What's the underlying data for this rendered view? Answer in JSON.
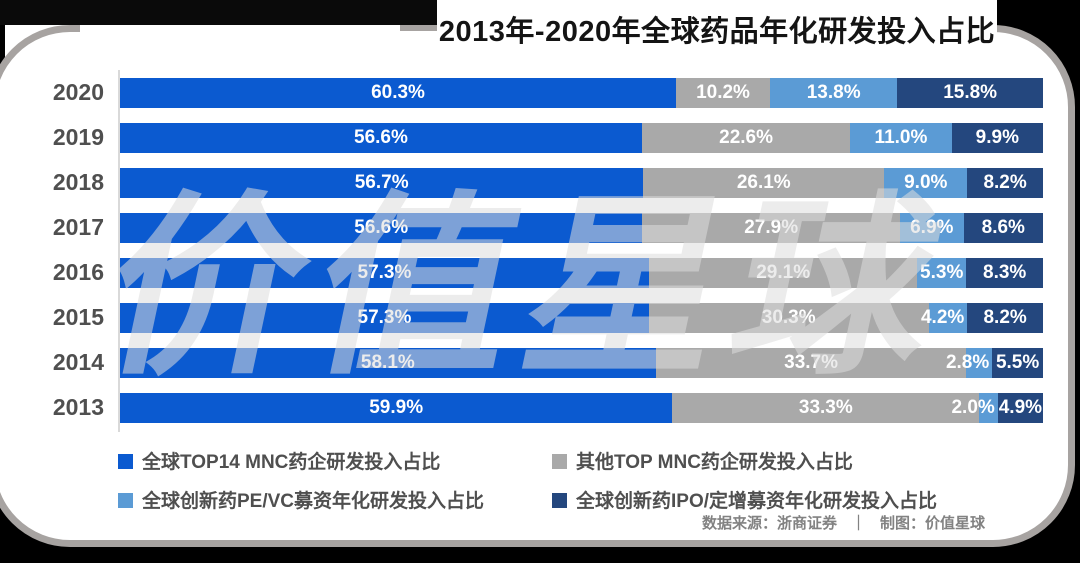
{
  "title": "2013年-2020年全球药品年化研发投入占比",
  "watermark": "价值星球",
  "colors": {
    "series_blue": "#0B5AD0",
    "series_gray": "#A9A9A9",
    "series_light_blue": "#5B9BD5",
    "series_dark_blue": "#24477E",
    "card_border": "#A7A3A1",
    "background": "#000000",
    "axis_line": "#D9D9D9",
    "year_text": "#4F4F4F",
    "footer_text": "#828282"
  },
  "chart_data": {
    "type": "bar",
    "stacked": true,
    "orientation": "horizontal",
    "title": "2013年-2020年全球药品年化研发投入占比",
    "value_suffix": "%",
    "xlim": [
      0,
      100
    ],
    "grid": false,
    "legend_position": "bottom",
    "categories": [
      "2020",
      "2019",
      "2018",
      "2017",
      "2016",
      "2015",
      "2014",
      "2013"
    ],
    "series": [
      {
        "name": "全球TOP14 MNC药企研发投入占比",
        "color": "#0B5AD0",
        "values": [
          60.3,
          56.6,
          56.7,
          56.6,
          57.3,
          57.3,
          58.1,
          59.9
        ]
      },
      {
        "name": "其他TOP MNC药企研发投入占比",
        "color": "#A9A9A9",
        "values": [
          10.2,
          22.6,
          26.1,
          27.9,
          29.1,
          30.3,
          33.7,
          33.3
        ]
      },
      {
        "name": "全球创新药PE/VC募资年化研发投入占比",
        "color": "#5B9BD5",
        "values": [
          13.8,
          11.0,
          9.0,
          6.9,
          5.3,
          4.2,
          2.8,
          2.0
        ]
      },
      {
        "name": "全球创新药IPO/定增募资年化研发投入占比",
        "color": "#24477E",
        "values": [
          15.8,
          9.9,
          8.2,
          8.6,
          8.3,
          8.2,
          5.5,
          4.9
        ]
      }
    ]
  },
  "legend": {
    "items": [
      {
        "label": "全球TOP14 MNC药企研发投入占比",
        "color": "#0B5AD0"
      },
      {
        "label": "其他TOP MNC药企研发投入占比",
        "color": "#A9A9A9"
      },
      {
        "label": "全球创新药PE/VC募资年化研发投入占比",
        "color": "#5B9BD5"
      },
      {
        "label": "全球创新药IPO/定增募资年化研发投入占比",
        "color": "#24477E"
      }
    ]
  },
  "footer": {
    "source": "数据来源：浙商证券",
    "divider": "｜",
    "credit": "制图：价值星球"
  }
}
